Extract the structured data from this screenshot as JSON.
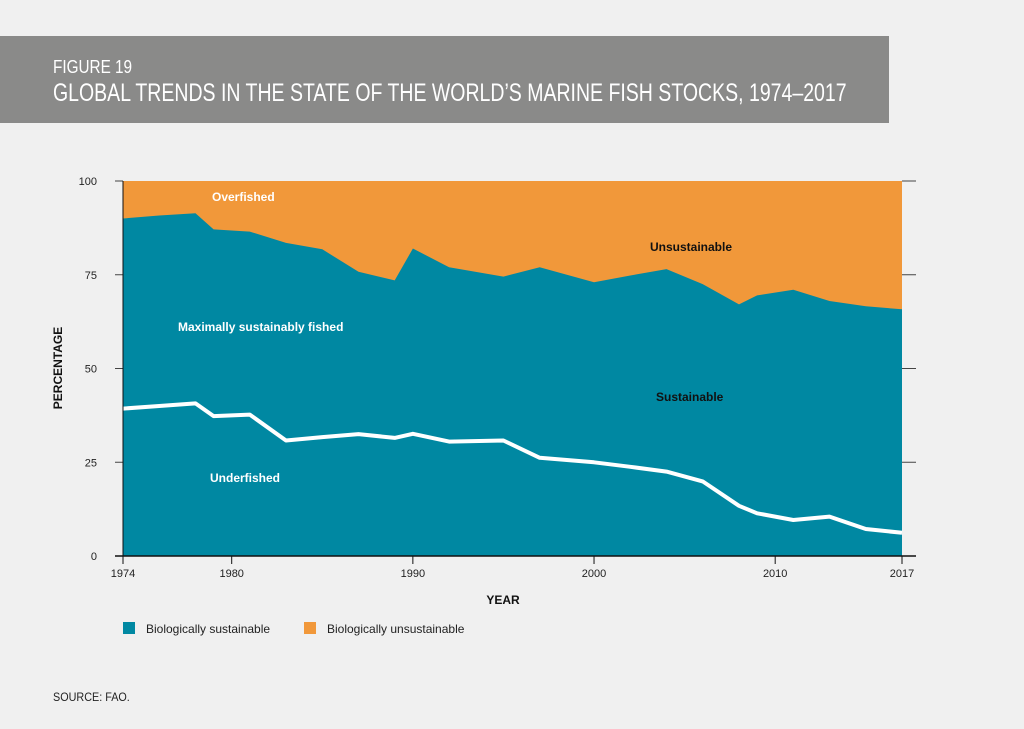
{
  "header": {
    "figure_label": "FIGURE 19",
    "title": "GLOBAL TRENDS IN THE STATE OF THE WORLD’S MARINE FISH STOCKS, 1974–2017"
  },
  "source": "SOURCE: FAO.",
  "colors": {
    "sustainable": "#0088a2",
    "unsustainable": "#f1983a",
    "header_bg": "#8a8a89",
    "line": "#ffffff"
  },
  "chart_data": {
    "type": "area",
    "title": "GLOBAL TRENDS IN THE STATE OF THE WORLD’S MARINE FISH STOCKS, 1974–2017",
    "xlabel": "YEAR",
    "ylabel": "PERCENTAGE",
    "xlim": [
      1974,
      2017
    ],
    "ylim": [
      0,
      100
    ],
    "x_ticks": [
      1974,
      1980,
      1990,
      2000,
      2010,
      2017
    ],
    "y_ticks": [
      0,
      25,
      50,
      75,
      100
    ],
    "series": [
      {
        "name": "Biologically sustainable",
        "x": [
          1974,
          1976,
          1978,
          1979,
          1981,
          1983,
          1985,
          1987,
          1989,
          1990,
          1992,
          1995,
          1997,
          2000,
          2002,
          2004,
          2006,
          2008,
          2009,
          2011,
          2013,
          2015,
          2017
        ],
        "values": [
          90.0,
          90.8,
          91.4,
          87.1,
          86.5,
          83.5,
          81.8,
          75.8,
          73.5,
          82.0,
          77.0,
          74.5,
          77.0,
          73.0,
          74.8,
          76.5,
          72.5,
          67.1,
          69.5,
          71.0,
          68.0,
          66.6,
          65.8
        ]
      },
      {
        "name": "Underfished (boundary)",
        "x": [
          1974,
          1976,
          1978,
          1979,
          1981,
          1983,
          1985,
          1987,
          1989,
          1990,
          1992,
          1995,
          1997,
          2000,
          2002,
          2004,
          2006,
          2008,
          2009,
          2011,
          2013,
          2015,
          2017
        ],
        "values": [
          39.3,
          40.0,
          40.7,
          37.3,
          37.7,
          30.8,
          31.7,
          32.5,
          31.5,
          32.6,
          30.5,
          30.8,
          26.2,
          25.0,
          23.8,
          22.5,
          19.9,
          13.4,
          11.4,
          9.6,
          10.5,
          7.2,
          6.2
        ]
      }
    ],
    "legend": [
      {
        "label": "Biologically sustainable",
        "color": "#0088a2"
      },
      {
        "label": "Biologically unsustainable",
        "color": "#f1983a"
      }
    ],
    "annotations": {
      "overfished": "Overfished",
      "unsustainable": "Unsustainable",
      "maximally": "Maximally sustainably fished",
      "sustainable": "Sustainable",
      "underfished": "Underfished"
    }
  }
}
